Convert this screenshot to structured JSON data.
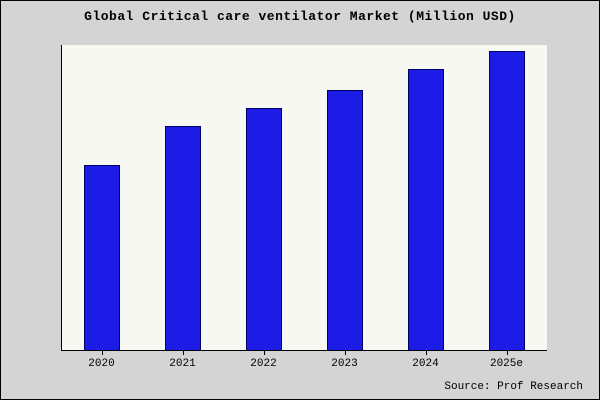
{
  "title": "Global Critical care ventilator Market (Million USD)",
  "source": "Source: Prof Research",
  "colors": {
    "bar_fill": "#1c1ce6",
    "bar_border": "#000066",
    "axis": "#000000",
    "plot_background": "#f8f8f3",
    "outer_background": "#d4d4d4"
  },
  "chart_data": {
    "type": "bar",
    "categories": [
      "2020",
      "2021",
      "2022",
      "2023",
      "2024",
      "2025e"
    ],
    "values": [
      62,
      75,
      81,
      87,
      94,
      100
    ],
    "title": "Global Critical care ventilator Market (Million USD)",
    "xlabel": "",
    "ylabel": "",
    "ylim": [
      0,
      102
    ],
    "grid": false,
    "legend": false,
    "source": "Source: Prof Research"
  }
}
